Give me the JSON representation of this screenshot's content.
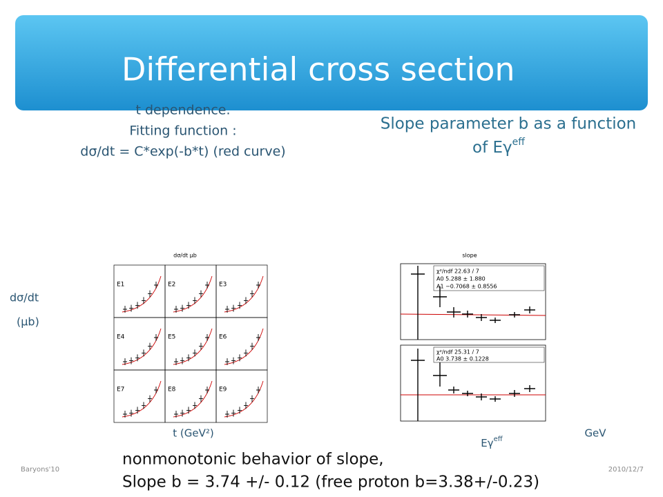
{
  "header": {
    "title": "Differential cross section"
  },
  "left_note": {
    "lines": [
      "t dependence.",
      "Fitting function :",
      "dσ/dt = C*exp(-b*t) (red curve)"
    ]
  },
  "right_note": {
    "line1": "Slope parameter b as a function",
    "line2_prefix": "of Eγ",
    "line2_sup": "eff"
  },
  "left_plot": {
    "title": "dσ/dt μb",
    "y_label": [
      "dσ/dt",
      "(μb)"
    ],
    "x_label": "t (GeV²)",
    "panels": [
      "E1",
      "E2",
      "E3",
      "E4",
      "E5",
      "E6",
      "E7",
      "E8",
      "E9"
    ]
  },
  "right_plot": {
    "title": "slope",
    "x_label_prefix": "Eγ",
    "x_label_sup": "eff",
    "unit": "GeV",
    "fit_top": [
      "χ²/ndf 22.63 / 7",
      "A0 5.288 ± 1.880",
      "A1 −0.7068 ± 0.8556"
    ],
    "fit_bottom": [
      "χ²/ndf 25.31 / 7",
      "A0 3.738 ± 0.1228"
    ]
  },
  "conclusion": [
    "nonmonotonic behavior of slope,",
    "Slope b = 3.74 +/- 0.12 (free proton b=3.38+/-0.23)"
  ],
  "footer": {
    "left": "Baryons'10",
    "right": "2010/12/7"
  }
}
